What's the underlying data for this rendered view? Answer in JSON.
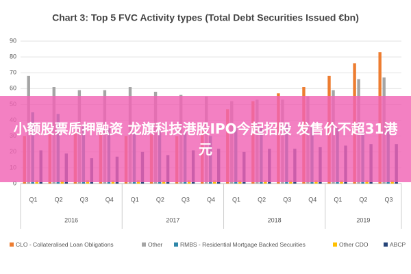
{
  "chart_data": {
    "type": "bar",
    "title": "Chart 3: Top 5 FVC Activity types (Total Debt Securities Issued €bn)",
    "groups": [
      {
        "label": "2016",
        "categories": [
          "Q1",
          "Q2",
          "Q3",
          "Q4"
        ]
      },
      {
        "label": "2017",
        "categories": [
          "Q1",
          "Q2",
          "Q3",
          "Q4"
        ]
      },
      {
        "label": "2018",
        "categories": [
          "Q1",
          "Q2",
          "Q3",
          "Q4"
        ]
      },
      {
        "label": "2019",
        "categories": [
          "Q1",
          "Q2",
          "Q3"
        ]
      }
    ],
    "series": [
      {
        "name": "CLO - Collateralised Loan Obligations",
        "color": "#ed7d31",
        "values": [
          30,
          31,
          33,
          32,
          30,
          31,
          30,
          33,
          47,
          52,
          57,
          61,
          68,
          76,
          83
        ]
      },
      {
        "name": "Other",
        "color": "#a5a5a5",
        "values": [
          68,
          61,
          59,
          59,
          61,
          58,
          56,
          55,
          52,
          53,
          53,
          55,
          59,
          66,
          67
        ]
      },
      {
        "name": "RMBS - Residential Mortgage Backed Securities",
        "color": "#2e86a8",
        "values": [
          45,
          44,
          36,
          35,
          33,
          34,
          33,
          30,
          35,
          35,
          37,
          36,
          35,
          33,
          35
        ]
      },
      {
        "name": "Other CDO",
        "color": "#ffc000",
        "values": [
          2,
          2,
          2,
          2,
          2,
          2,
          2,
          2,
          2,
          2,
          2,
          2,
          2,
          2,
          2
        ]
      },
      {
        "name": "ABCP",
        "color": "#264478",
        "values": [
          21,
          19,
          16,
          17,
          20,
          18,
          21,
          22,
          20,
          22,
          22,
          23,
          24,
          25,
          25
        ]
      }
    ],
    "ylim": [
      0,
      90
    ],
    "yticks": [
      0,
      10,
      20,
      30,
      40,
      50,
      60,
      70,
      80,
      90
    ],
    "grid": true
  },
  "overlay": {
    "text": "小额股票质押融资 龙旗科技港股IPO今起招股 发售价不超31港元"
  }
}
